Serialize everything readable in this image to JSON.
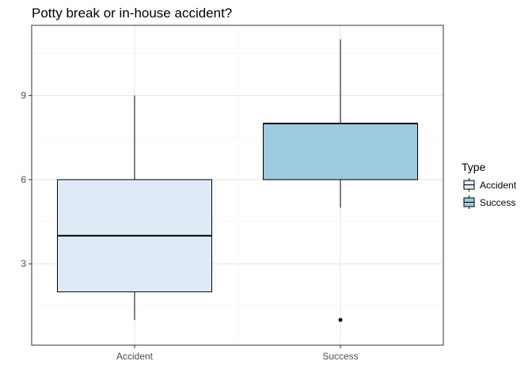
{
  "chart_data": {
    "type": "boxplot",
    "title": "Potty break or in-house accident?",
    "xlabel": "",
    "ylabel": "",
    "categories": [
      "Accident",
      "Success"
    ],
    "ylim": [
      0.1,
      11.5
    ],
    "yticks": [
      3,
      6,
      9
    ],
    "grid": true,
    "legend": {
      "title": "Type",
      "placement": "right",
      "entries": [
        {
          "label": "Accident",
          "color": "#deebf7"
        },
        {
          "label": "Success",
          "color": "#9ecae1"
        }
      ]
    },
    "boxes": [
      {
        "category": "Accident",
        "fill": "#deebf7",
        "min": 1,
        "q1": 2,
        "median": 4,
        "q3": 6,
        "max": 9,
        "outliers": []
      },
      {
        "category": "Success",
        "fill": "#9ecae1",
        "min": 5,
        "q1": 6,
        "median": 8,
        "q3": 8,
        "max": 11,
        "outliers": [
          1
        ]
      }
    ]
  }
}
